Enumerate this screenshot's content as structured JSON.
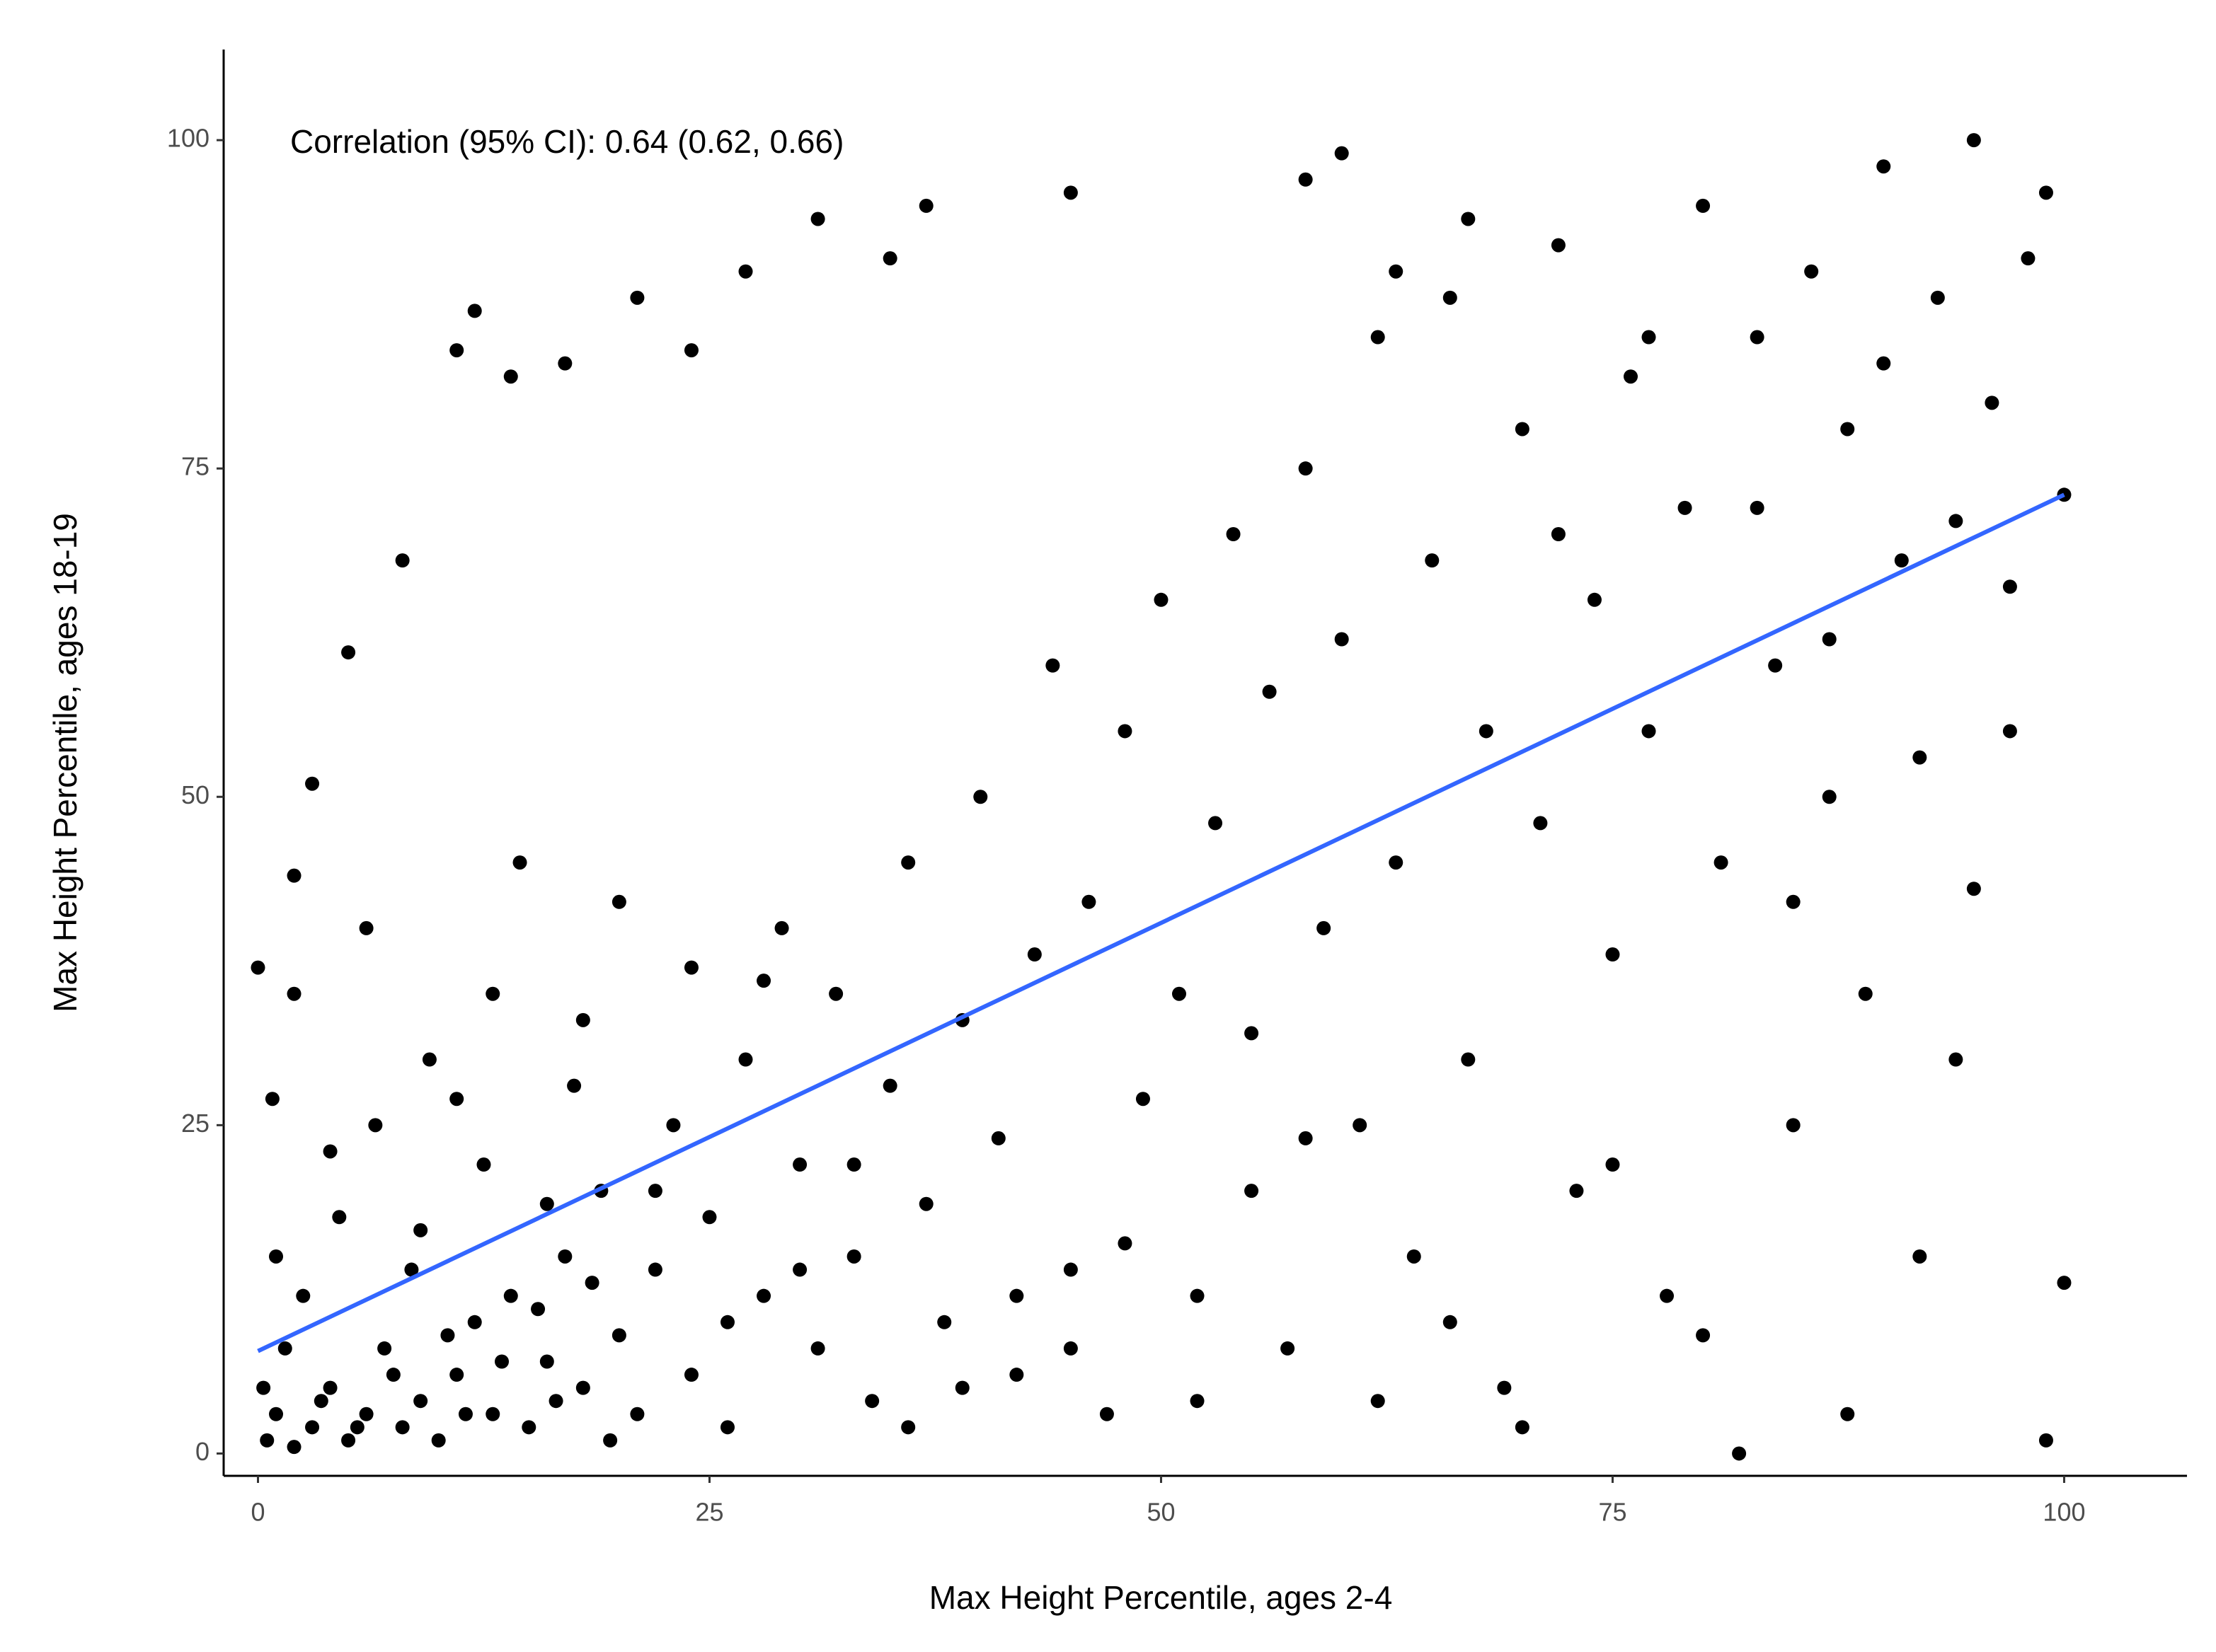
{
  "chart_data": {
    "type": "scatter",
    "annotation": "Correlation (95% CI): 0.64 (0.62, 0.66)",
    "x_label": "Max Height Percentile, ages 2-4",
    "y_label": "Max Height Percentile, ages 18-19",
    "color": "#000000",
    "trend_line": {
      "color": "#3366ff",
      "x": [
        0,
        100
      ],
      "values": [
        7.8,
        73
      ]
    },
    "xlim": [
      -1.9,
      106.8
    ],
    "ylim": [
      -1.7,
      106.9
    ],
    "xticks": [
      0,
      25,
      50,
      75,
      100
    ],
    "yticks": [
      0,
      25,
      50,
      75,
      100
    ],
    "x": [
      0.5,
      1,
      2,
      3,
      4,
      5,
      6,
      7,
      8,
      9,
      10,
      11,
      12,
      13,
      14,
      15,
      16,
      17,
      18,
      19,
      20,
      21,
      22,
      23,
      24,
      25,
      26,
      27,
      28,
      29,
      30,
      31,
      32,
      33,
      34,
      35,
      36,
      37,
      38,
      39,
      40,
      41,
      42,
      43,
      44,
      45,
      46,
      47,
      48,
      49,
      50,
      51,
      52,
      53,
      54,
      55,
      56,
      57,
      58,
      59,
      60,
      61,
      62,
      63,
      64,
      65,
      66,
      67,
      68,
      69,
      70,
      71,
      72,
      73,
      74,
      75,
      76,
      77,
      78,
      79,
      80,
      81,
      82,
      83,
      84,
      85,
      86,
      87,
      88,
      89,
      90,
      91,
      92,
      93,
      94,
      95,
      96,
      97,
      98,
      99,
      100,
      100,
      99,
      0.3,
      1.5,
      2.5,
      3.5,
      4.5,
      5.5,
      6.5,
      7.5,
      8.5,
      9.5,
      10.5,
      11.5,
      12.5,
      13.5,
      14.5,
      15.5,
      16.5,
      17.5,
      18.5,
      19.5,
      0,
      2,
      3,
      5,
      8,
      12,
      11,
      14,
      17,
      21,
      24,
      27,
      31,
      35,
      37,
      45,
      58,
      60,
      0.8,
      1,
      2,
      4,
      6,
      9,
      11,
      13,
      16,
      18,
      20,
      22,
      24,
      26,
      28,
      30,
      33,
      36,
      39,
      42,
      45,
      48,
      52,
      55,
      58,
      62,
      66,
      70,
      75,
      80,
      85,
      88,
      92,
      95,
      97,
      63,
      67,
      72,
      77,
      83,
      87,
      90,
      94
    ],
    "values": [
      1,
      3,
      0.5,
      2,
      5,
      1,
      3,
      8,
      2,
      4,
      1,
      6,
      10,
      3,
      12,
      2,
      7,
      15,
      5,
      20,
      9,
      3,
      14,
      25,
      6,
      18,
      2,
      30,
      12,
      40,
      22,
      8,
      35,
      15,
      4,
      28,
      45,
      19,
      10,
      33,
      50,
      24,
      6,
      38,
      60,
      14,
      42,
      3,
      55,
      27,
      65,
      35,
      12,
      48,
      70,
      20,
      58,
      8,
      75,
      40,
      62,
      25,
      85,
      45,
      15,
      68,
      88,
      30,
      55,
      5,
      78,
      48,
      92,
      20,
      65,
      38,
      82,
      55,
      12,
      72,
      95,
      45,
      0,
      85,
      60,
      25,
      90,
      50,
      78,
      35,
      98,
      68,
      15,
      88,
      30,
      100,
      80,
      55,
      91,
      96,
      73,
      13,
      1,
      5,
      8,
      12,
      4,
      18,
      2,
      25,
      6,
      14,
      30,
      9,
      3,
      22,
      7,
      45,
      11,
      4,
      28,
      13,
      1,
      37,
      44,
      51,
      61,
      68,
      87,
      84,
      82,
      83,
      88,
      84,
      90,
      94,
      91,
      95,
      96,
      97,
      99,
      27,
      15,
      35,
      23,
      40,
      17,
      27,
      35,
      19,
      33,
      42,
      20,
      37,
      10,
      36,
      14,
      22,
      2,
      5,
      12,
      8,
      16,
      4,
      32,
      24,
      4,
      10,
      2,
      22,
      9,
      42,
      3,
      53,
      43,
      66,
      90,
      94,
      70,
      85,
      72,
      62,
      83,
      71
    ]
  }
}
